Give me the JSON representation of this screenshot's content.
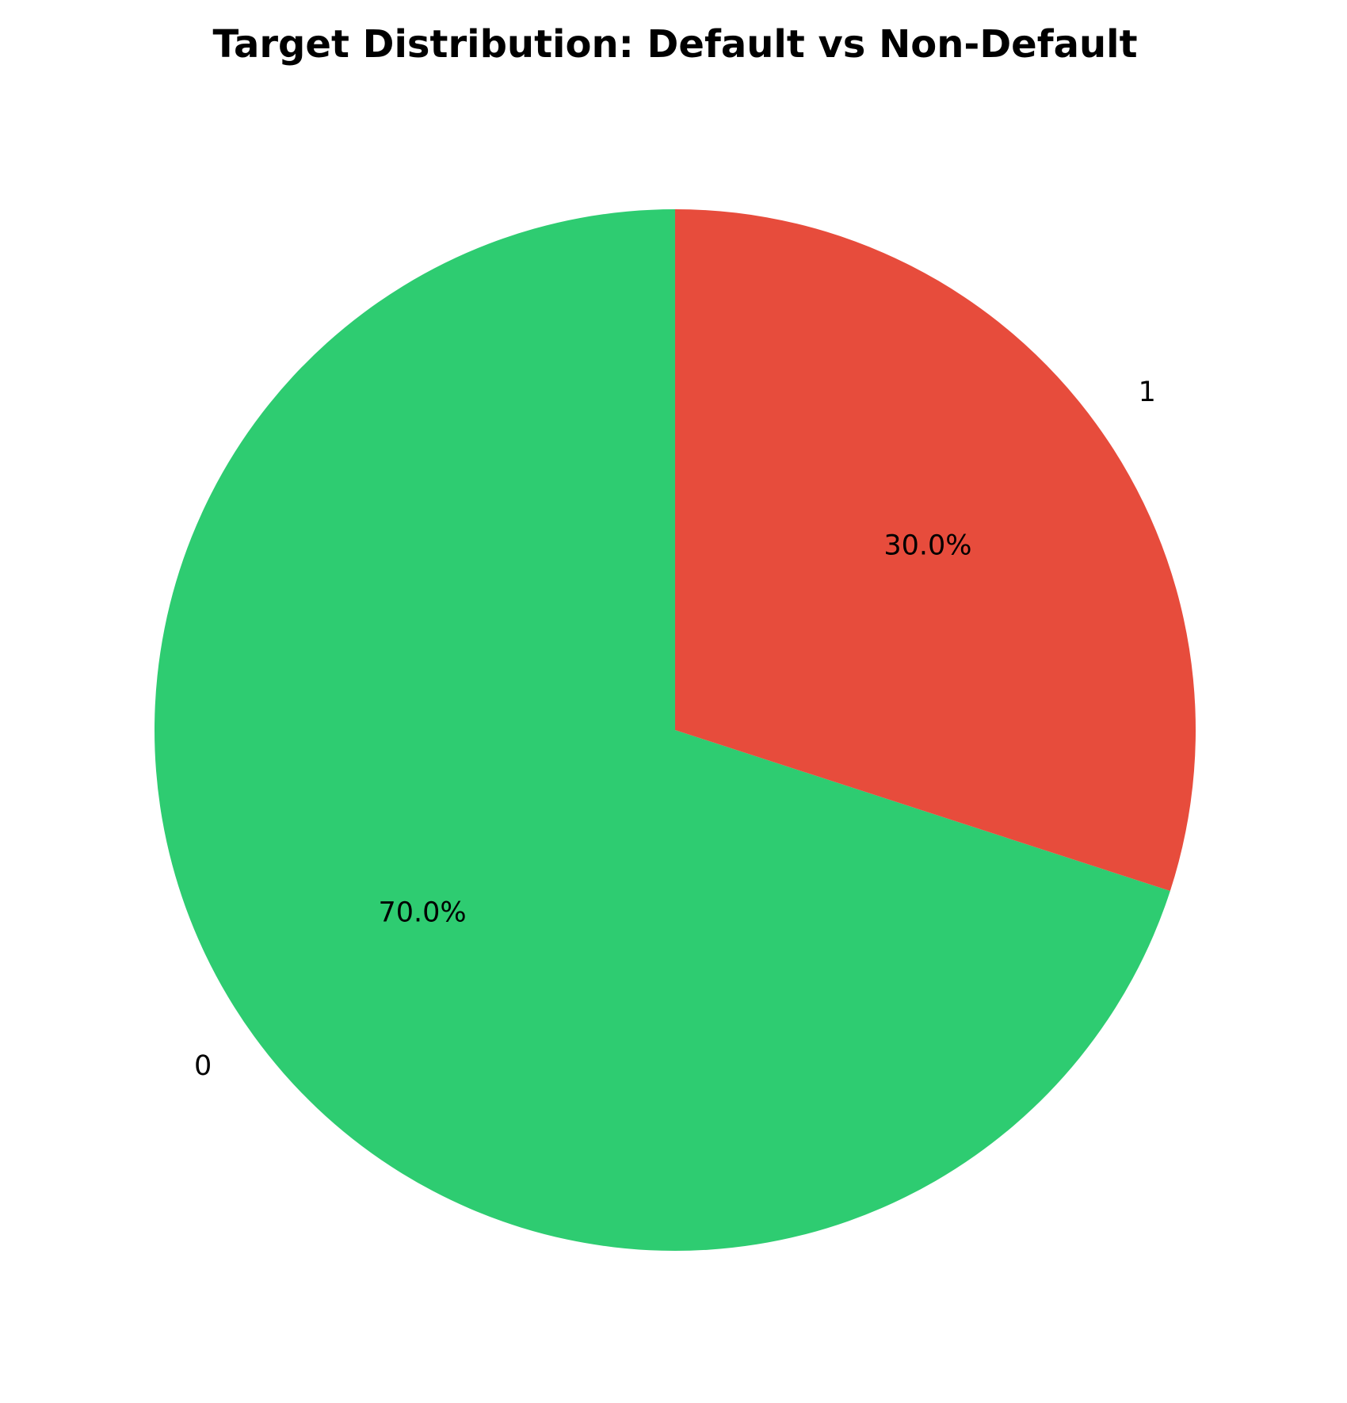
{
  "chart_data": {
    "type": "pie",
    "title": "Target Distribution: Default vs Non-Default",
    "categories": [
      "0",
      "1"
    ],
    "values": [
      70.0,
      30.0
    ],
    "value_labels": [
      "70.0%",
      "30.0%"
    ],
    "colors": [
      "#2ecc71",
      "#e74c3c"
    ],
    "start_angle": "top (90°)",
    "direction": "counterclockwise",
    "legend": "none"
  }
}
